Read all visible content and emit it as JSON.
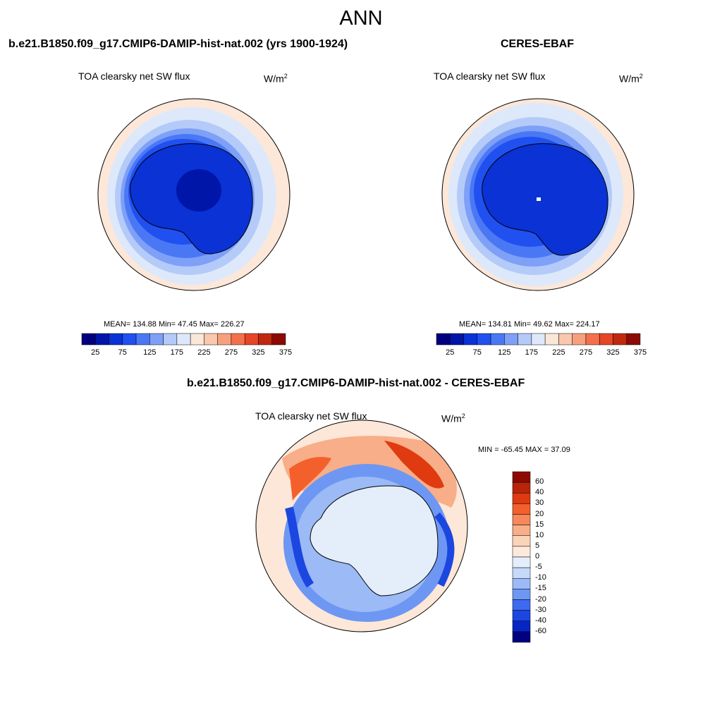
{
  "figure": {
    "season": "ANN"
  },
  "panels": [
    {
      "id": "model",
      "title": "b.e21.B1850.f09_g17.CMIP6-DAMIP-hist-nat.002 (yrs 1900-1924)",
      "variable": "TOA clearsky net SW flux",
      "units_base": "W/m",
      "units_exp": "2",
      "stats_text": "MEAN= 134.88  Min=  47.45  Max= 226.27",
      "mean": 134.88,
      "min": 47.45,
      "max": 226.27
    },
    {
      "id": "obs",
      "title": "CERES-EBAF",
      "variable": "TOA clearsky net SW flux",
      "units_base": "W/m",
      "units_exp": "2",
      "stats_text": "MEAN= 134.81  Min=  49.62  Max= 224.17",
      "mean": 134.81,
      "min": 49.62,
      "max": 224.17
    },
    {
      "id": "diff",
      "title": "b.e21.B1850.f09_g17.CMIP6-DAMIP-hist-nat.002 - CERES-EBAF",
      "variable": "TOA clearsky net SW flux",
      "units_base": "W/m",
      "units_exp": "2",
      "stats_text": "MIN = -65.45 MAX =  37.09",
      "min": -65.45,
      "max": 37.09
    }
  ],
  "colorbar_abs": {
    "colors": [
      "#00007f",
      "#0016a8",
      "#0a32d4",
      "#2050f0",
      "#4a78f5",
      "#7ea0f7",
      "#b4cbf9",
      "#dde9fa",
      "#fbe7d8",
      "#f9c8ad",
      "#f7a07e",
      "#f4704b",
      "#e64625",
      "#bf2a0f",
      "#8c0a03"
    ],
    "labels": [
      "25",
      "75",
      "125",
      "175",
      "225",
      "275",
      "325",
      "375"
    ]
  },
  "colorbar_diff": {
    "colors_top_to_bottom": [
      "#8c0a03",
      "#b82508",
      "#e03a10",
      "#f4602c",
      "#f6885a",
      "#f8ae88",
      "#fad4b8",
      "#fde9dc",
      "#e4eefb",
      "#c6d9f9",
      "#9bbaf6",
      "#6e97f3",
      "#3d6aee",
      "#1c46e0",
      "#0526c2",
      "#000080"
    ],
    "labels_top_to_bottom": [
      "60",
      "40",
      "30",
      "20",
      "15",
      "10",
      "5",
      "0",
      "-5",
      "-10",
      "-15",
      "-20",
      "-30",
      "-40",
      "-60"
    ]
  },
  "colors": {
    "ocean_low_lat": "#fde7d8",
    "coast_line": "#000000"
  }
}
